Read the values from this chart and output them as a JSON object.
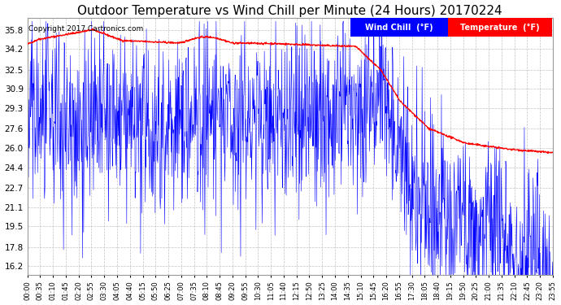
{
  "title": "Outdoor Temperature vs Wind Chill per Minute (24 Hours) 20170224",
  "copyright_text": "Copyright 2017 Cartronics.com",
  "background_color": "#ffffff",
  "plot_bg_color": "#ffffff",
  "grid_color": "#bbbbbb",
  "title_fontsize": 11,
  "yticks": [
    16.2,
    17.8,
    19.5,
    21.1,
    22.7,
    24.4,
    26.0,
    27.6,
    29.3,
    30.9,
    32.5,
    34.2,
    35.8
  ],
  "ylim": [
    15.5,
    36.8
  ],
  "num_minutes": 1440,
  "temp_color": "#ff0000",
  "windchill_color": "#0000ff",
  "legend_wc_bg": "#0000ff",
  "legend_temp_bg": "#ff0000",
  "xtick_labels": [
    "00:00",
    "00:35",
    "01:10",
    "01:45",
    "02:20",
    "02:55",
    "03:30",
    "04:05",
    "04:40",
    "05:15",
    "05:50",
    "06:25",
    "07:00",
    "07:35",
    "08:10",
    "08:45",
    "09:20",
    "09:55",
    "10:30",
    "11:05",
    "11:40",
    "12:15",
    "12:50",
    "13:25",
    "14:00",
    "14:35",
    "15:10",
    "15:45",
    "16:20",
    "16:55",
    "17:30",
    "18:05",
    "18:40",
    "19:15",
    "19:50",
    "20:25",
    "21:00",
    "21:35",
    "22:10",
    "22:45",
    "23:20",
    "23:55"
  ]
}
